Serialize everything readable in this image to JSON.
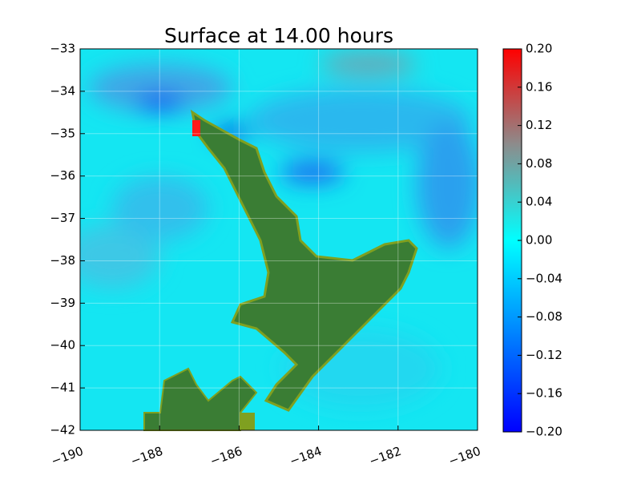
{
  "chart_data": {
    "type": "map",
    "title": "Surface at 14.00 hours",
    "xlim": [
      -190,
      -180
    ],
    "xticks": [
      {
        "value": -190,
        "label": "−190"
      },
      {
        "value": -188,
        "label": "−188"
      },
      {
        "value": -186,
        "label": "−186"
      },
      {
        "value": -184,
        "label": "−184"
      },
      {
        "value": -182,
        "label": "−182"
      },
      {
        "value": -180,
        "label": "−180"
      }
    ],
    "ylim": [
      -42,
      -33
    ],
    "yticks": [
      {
        "value": -42,
        "label": "−42"
      },
      {
        "value": -41,
        "label": "−41"
      },
      {
        "value": -40,
        "label": "−40"
      },
      {
        "value": -39,
        "label": "−39"
      },
      {
        "value": -38,
        "label": "−38"
      },
      {
        "value": -37,
        "label": "−37"
      },
      {
        "value": -36,
        "label": "−36"
      },
      {
        "value": -35,
        "label": "−35"
      },
      {
        "value": -34,
        "label": "−34"
      },
      {
        "value": -33,
        "label": "−33"
      }
    ],
    "grid": true,
    "colorbar": {
      "lim": [
        -0.2,
        0.2
      ],
      "ticks": [
        {
          "value": -0.2,
          "label": "−0.20"
        },
        {
          "value": -0.16,
          "label": "−0.16"
        },
        {
          "value": -0.12,
          "label": "−0.12"
        },
        {
          "value": -0.08,
          "label": "−0.08"
        },
        {
          "value": -0.04,
          "label": "−0.04"
        },
        {
          "value": 0,
          "label": "0.00"
        },
        {
          "value": 0.04,
          "label": "0.04"
        },
        {
          "value": 0.08,
          "label": "0.08"
        },
        {
          "value": 0.12,
          "label": "0.12"
        },
        {
          "value": 0.16,
          "label": "0.16"
        },
        {
          "value": 0.2,
          "label": "0.20"
        }
      ],
      "stops": [
        {
          "value": -0.2,
          "color": "#0000ff"
        },
        {
          "value": 0,
          "color": "#00ffff"
        },
        {
          "value": 0.1,
          "color": "#8c8c8c"
        },
        {
          "value": 0.2,
          "color": "#ff0000"
        }
      ]
    }
  }
}
